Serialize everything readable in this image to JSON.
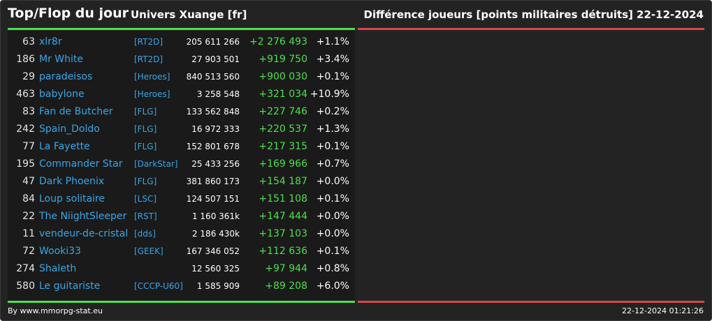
{
  "header": {
    "title": "Top/Flop du jour",
    "universe": "Univers Xuange [fr]",
    "metric": "Différence joueurs [points militaires détruits]",
    "date": "22-12-2024"
  },
  "rows": [
    {
      "rank": "63",
      "name": "xlr8r",
      "alliance": "[RT2D]",
      "points": "205 611 266",
      "diff": "+2 276 493",
      "pct": "+1.1%"
    },
    {
      "rank": "186",
      "name": "Mr White",
      "alliance": "[RT2D]",
      "points": "27 903 501",
      "diff": "+919 750",
      "pct": "+3.4%"
    },
    {
      "rank": "29",
      "name": "paradeisos",
      "alliance": "[Heroes]",
      "points": "840 513 560",
      "diff": "+900 030",
      "pct": "+0.1%"
    },
    {
      "rank": "463",
      "name": "babylone",
      "alliance": "[Heroes]",
      "points": "3 258 548",
      "diff": "+321 034",
      "pct": "+10.9%"
    },
    {
      "rank": "83",
      "name": "Fan de Butcher",
      "alliance": "[FLG]",
      "points": "133 562 848",
      "diff": "+227 746",
      "pct": "+0.2%"
    },
    {
      "rank": "242",
      "name": "Spain_Doldo",
      "alliance": "[FLG]",
      "points": "16 972 333",
      "diff": "+220 537",
      "pct": "+1.3%"
    },
    {
      "rank": "77",
      "name": "La Fayette",
      "alliance": "[FLG]",
      "points": "152 801 678",
      "diff": "+217 315",
      "pct": "+0.1%"
    },
    {
      "rank": "195",
      "name": "Commander Star",
      "alliance": "[DarkStar]",
      "points": "25 433 256",
      "diff": "+169 966",
      "pct": "+0.7%"
    },
    {
      "rank": "47",
      "name": "Dark Phoenix",
      "alliance": "[FLG]",
      "points": "381 860 173",
      "diff": "+154 187",
      "pct": "+0.0%"
    },
    {
      "rank": "84",
      "name": "Loup solitaire",
      "alliance": "[LSC]",
      "points": "124 507 151",
      "diff": "+151 108",
      "pct": "+0.1%"
    },
    {
      "rank": "22",
      "name": "The NiightSleeper",
      "alliance": "[RST]",
      "points": "1 160 361k",
      "diff": "+147 444",
      "pct": "+0.0%"
    },
    {
      "rank": "11",
      "name": "vendeur-de-cristal",
      "alliance": "[dds]",
      "points": "2 186 430k",
      "diff": "+137 103",
      "pct": "+0.0%"
    },
    {
      "rank": "72",
      "name": "Wooki33",
      "alliance": "[GEEK]",
      "points": "167 346 052",
      "diff": "+112 636",
      "pct": "+0.1%"
    },
    {
      "rank": "274",
      "name": "Shaleth",
      "alliance": "",
      "points": "12 560 325",
      "diff": "+97 944",
      "pct": "+0.8%"
    },
    {
      "rank": "580",
      "name": "Le guitariste",
      "alliance": "[CCCP-U60]",
      "points": "1 585 909",
      "diff": "+89 208",
      "pct": "+6.0%"
    }
  ],
  "footer": {
    "credit": "By www.mmorpg-stat.eu",
    "timestamp": "22-12-2024 01:21:26"
  },
  "colors": {
    "top_accent": "#4de04d",
    "flop_accent": "#d94848",
    "link": "#3aa6e6",
    "gain": "#4de04d"
  }
}
